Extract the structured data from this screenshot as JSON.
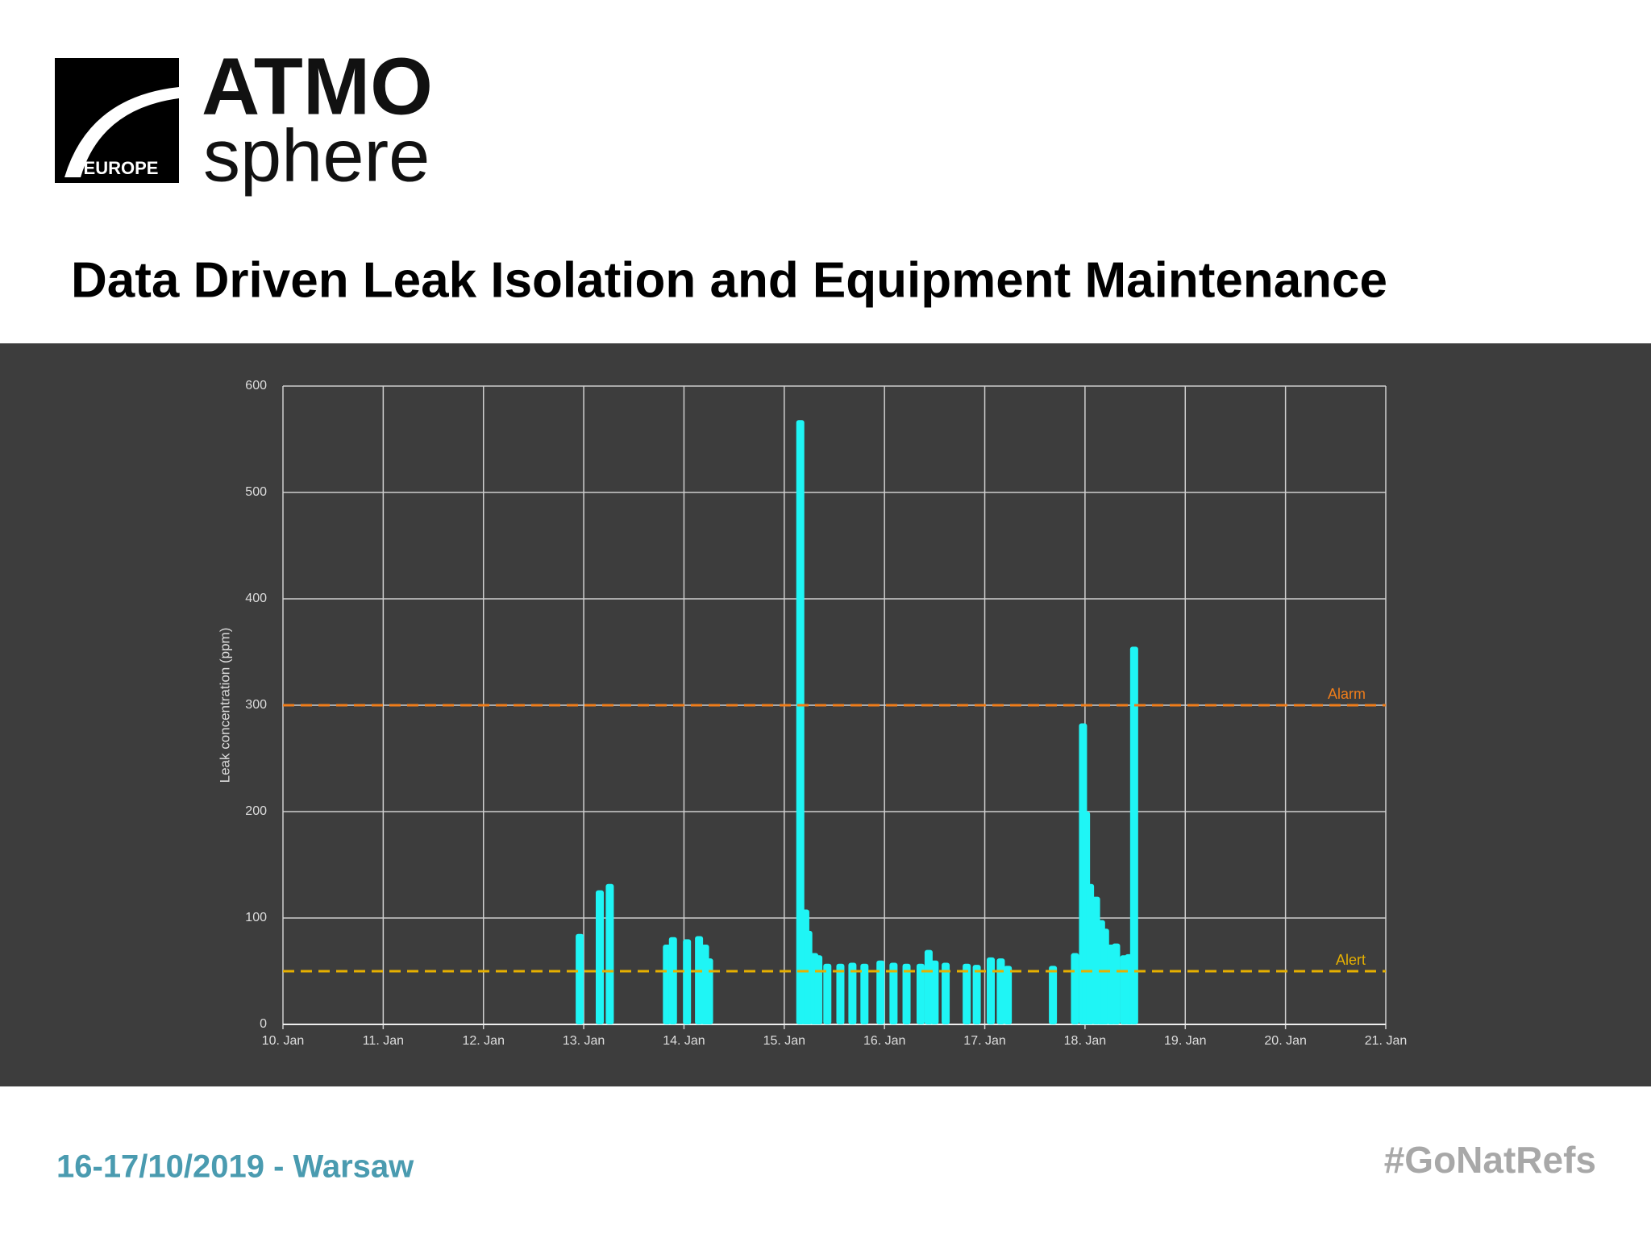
{
  "logo": {
    "line1": "ATMO",
    "line2": "sphere",
    "badge": "EUROPE"
  },
  "footer": {
    "left": "16-17/10/2019 - Warsaw",
    "right": "#GoNatRefs"
  },
  "chart_data": {
    "type": "bar",
    "title": "Data Driven Leak Isolation and Equipment Maintenance",
    "ylabel": "Leak concentration (ppm)",
    "color": "#1ff5f5",
    "x": [
      12.96,
      13.16,
      13.26,
      13.83,
      13.89,
      14.03,
      14.15,
      14.21,
      14.25,
      15.16,
      15.21,
      15.24,
      15.3,
      15.34,
      15.43,
      15.56,
      15.68,
      15.8,
      15.96,
      16.09,
      16.22,
      16.36,
      16.44,
      16.5,
      16.61,
      16.82,
      16.92,
      17.06,
      17.16,
      17.23,
      17.68,
      17.9,
      17.98,
      18.01,
      18.05,
      18.11,
      18.16,
      18.2,
      18.26,
      18.31,
      18.39,
      18.44,
      18.49
    ],
    "values": [
      85,
      126,
      132,
      75,
      82,
      80,
      83,
      75,
      62,
      568,
      108,
      88,
      67,
      65,
      57,
      57,
      58,
      57,
      60,
      58,
      57,
      57,
      70,
      60,
      58,
      57,
      56,
      63,
      62,
      55,
      55,
      67,
      283,
      200,
      132,
      120,
      98,
      90,
      75,
      76,
      65,
      66,
      355
    ],
    "xlim": [
      10,
      21
    ],
    "xticks": [
      {
        "value": 10,
        "label": "10. Jan"
      },
      {
        "value": 11,
        "label": "11. Jan"
      },
      {
        "value": 12,
        "label": "12. Jan"
      },
      {
        "value": 13,
        "label": "13. Jan"
      },
      {
        "value": 14,
        "label": "14. Jan"
      },
      {
        "value": 15,
        "label": "15. Jan"
      },
      {
        "value": 16,
        "label": "16. Jan"
      },
      {
        "value": 17,
        "label": "17. Jan"
      },
      {
        "value": 18,
        "label": "18. Jan"
      },
      {
        "value": 19,
        "label": "19. Jan"
      },
      {
        "value": 20,
        "label": "20. Jan"
      },
      {
        "value": 21,
        "label": "21. Jan"
      }
    ],
    "ylim": [
      0,
      600
    ],
    "yticks": [
      0,
      100,
      200,
      300,
      400,
      500,
      600
    ],
    "grid": true,
    "annotations": [
      {
        "label": "Alarm",
        "value": 300,
        "color": "#f07d1a"
      },
      {
        "label": "Alert",
        "value": 50,
        "color": "#e6b000"
      }
    ]
  }
}
